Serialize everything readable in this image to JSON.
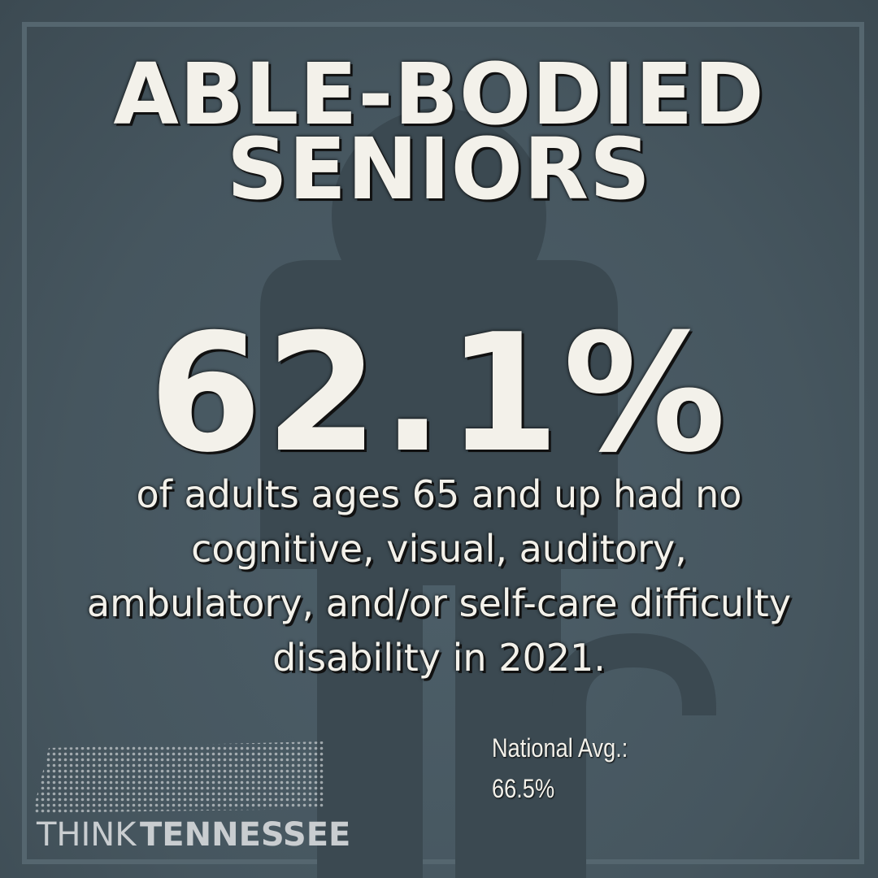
{
  "header": {
    "title_lines": [
      "ABLE-BODIED",
      "SENIORS"
    ]
  },
  "statistic": {
    "value": "62.1%",
    "description_lines": [
      "of adults ages 65 and up had no",
      "cognitive, visual, auditory,",
      "ambulatory, and/or self-care difficulty",
      "disability in 2021."
    ]
  },
  "comparison": {
    "label": "National Avg.:",
    "value": "66.5%"
  },
  "logo": {
    "word1": "THINK",
    "word2": "TENNESSEE"
  }
}
